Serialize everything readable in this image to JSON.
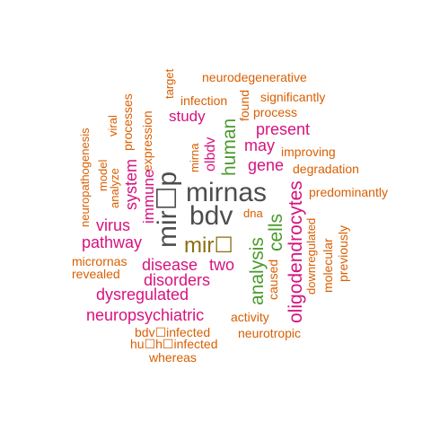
{
  "colors": {
    "orange": "#d95f02",
    "pink": "#d6137f",
    "green": "#4a9b2c",
    "gray": "#4d4d4d",
    "olive": "#8c6d12"
  },
  "words": [
    {
      "text": "neurodegenerative",
      "color": "orange"
    },
    {
      "text": "target",
      "color": "orange"
    },
    {
      "text": "infection",
      "color": "orange"
    },
    {
      "text": "significantly",
      "color": "orange"
    },
    {
      "text": "found",
      "color": "orange"
    },
    {
      "text": "process",
      "color": "orange"
    },
    {
      "text": "study",
      "color": "pink"
    },
    {
      "text": "human",
      "color": "green"
    },
    {
      "text": "present",
      "color": "pink"
    },
    {
      "text": "viral",
      "color": "orange"
    },
    {
      "text": "processes",
      "color": "orange"
    },
    {
      "text": "expression",
      "color": "orange"
    },
    {
      "text": "neuropathogenesis",
      "color": "orange"
    },
    {
      "text": "may",
      "color": "pink"
    },
    {
      "text": "improving",
      "color": "orange"
    },
    {
      "text": "mir☐p",
      "color": "gray"
    },
    {
      "text": "mirna",
      "color": "orange"
    },
    {
      "text": "olbdv",
      "color": "pink"
    },
    {
      "text": "gene",
      "color": "pink"
    },
    {
      "text": "degradation",
      "color": "orange"
    },
    {
      "text": "model",
      "color": "orange"
    },
    {
      "text": "analyze",
      "color": "orange"
    },
    {
      "text": "system",
      "color": "pink"
    },
    {
      "text": "immune",
      "color": "pink"
    },
    {
      "text": "mirnas",
      "color": "gray"
    },
    {
      "text": "predominantly",
      "color": "orange"
    },
    {
      "text": "bdv",
      "color": "gray"
    },
    {
      "text": "dna",
      "color": "orange"
    },
    {
      "text": "oligodendrocytes",
      "color": "pink"
    },
    {
      "text": "cells",
      "color": "green"
    },
    {
      "text": "virus",
      "color": "pink"
    },
    {
      "text": "mir☐",
      "color": "olive"
    },
    {
      "text": "pathway",
      "color": "pink"
    },
    {
      "text": "analysis",
      "color": "green"
    },
    {
      "text": "caused",
      "color": "orange"
    },
    {
      "text": "downregulated",
      "color": "orange"
    },
    {
      "text": "molecular",
      "color": "orange"
    },
    {
      "text": "previously",
      "color": "orange"
    },
    {
      "text": "micrornas",
      "color": "orange"
    },
    {
      "text": "revealed",
      "color": "orange"
    },
    {
      "text": "disease",
      "color": "pink"
    },
    {
      "text": "two",
      "color": "pink"
    },
    {
      "text": "disorders",
      "color": "pink"
    },
    {
      "text": "dysregulated",
      "color": "pink"
    },
    {
      "text": "neuropsychiatric",
      "color": "pink"
    },
    {
      "text": "activity",
      "color": "orange"
    },
    {
      "text": "bdv☐infected",
      "color": "orange"
    },
    {
      "text": "neurotropic",
      "color": "orange"
    },
    {
      "text": "hu☐h☐infected",
      "color": "orange"
    },
    {
      "text": "whereas",
      "color": "orange"
    }
  ]
}
